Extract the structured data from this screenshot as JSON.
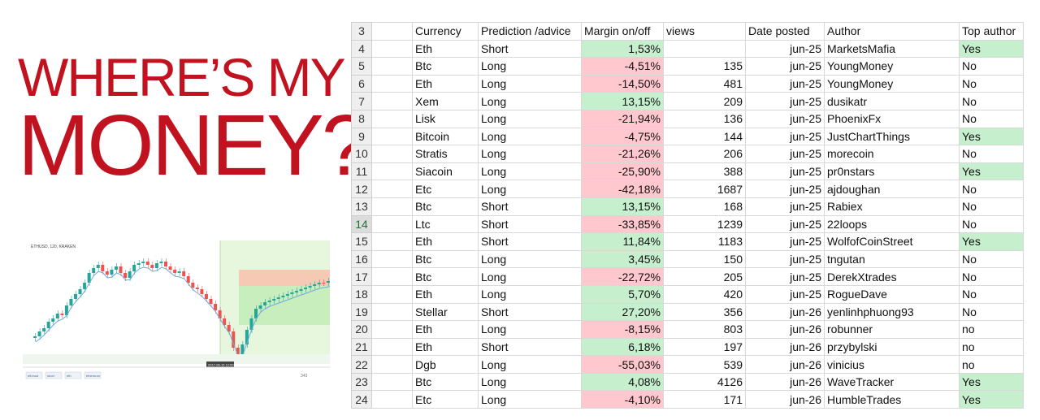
{
  "headline": {
    "line1": "WHERE’S MY",
    "line2": "MONEY?"
  },
  "chart": {
    "symbol_text": "ETHUSD, 120, KRAKEN",
    "time_marker": "2017-06-15 12:00:00",
    "footer_buttons": [
      "eth/usd",
      "short",
      "eth",
      "ethereum"
    ],
    "footer_views": "343"
  },
  "table": {
    "header_row_number": "3",
    "columns": [
      "Currency",
      "Prediction /advice",
      "Margin on/off",
      "views",
      "Date posted",
      "Author",
      "Top author"
    ],
    "rows": [
      {
        "n": "4",
        "currency": "Eth",
        "prediction": "Short",
        "margin": "1,53%",
        "margin_sign": "pos",
        "views": "",
        "date": "jun-25",
        "author": "Markets",
        "author_hidden": "Mafia",
        "top": "Yes"
      },
      {
        "n": "5",
        "currency": "Btc",
        "prediction": "Long",
        "margin": "-4,51%",
        "margin_sign": "neg",
        "views": "135",
        "date": "jun-25",
        "author": "YoungM",
        "author_hidden": "oney",
        "top": "No"
      },
      {
        "n": "6",
        "currency": "Eth",
        "prediction": "Long",
        "margin": "-14,50%",
        "margin_sign": "neg",
        "views": "481",
        "date": "jun-25",
        "author": "YoungM",
        "author_hidden": "oney",
        "top": "No"
      },
      {
        "n": "7",
        "currency": "Xem",
        "prediction": "Long",
        "margin": "13,15%",
        "margin_sign": "pos",
        "views": "209",
        "date": "jun-25",
        "author": "dusika",
        "author_hidden": "tr",
        "top": "No"
      },
      {
        "n": "8",
        "currency": "Lisk",
        "prediction": "Long",
        "margin": "-21,94%",
        "margin_sign": "neg",
        "views": "136",
        "date": "jun-25",
        "author": "Phoen",
        "author_hidden": "ixFx",
        "top": "No"
      },
      {
        "n": "9",
        "currency": "Bitcoin",
        "prediction": "Long",
        "margin": "-4,75%",
        "margin_sign": "neg",
        "views": "144",
        "date": "jun-25",
        "author": "JustChart",
        "author_hidden": "Things",
        "top": "Yes"
      },
      {
        "n": "10",
        "currency": "Stratis",
        "prediction": "Long",
        "margin": "-21,26%",
        "margin_sign": "neg",
        "views": "206",
        "date": "jun-25",
        "author": "more",
        "author_hidden": "coin",
        "top": "No"
      },
      {
        "n": "11",
        "currency": "Siacoin",
        "prediction": "Long",
        "margin": "-25,90%",
        "margin_sign": "neg",
        "views": "388",
        "date": "jun-25",
        "author": "pr0n",
        "author_hidden": "stars",
        "top": "Yes"
      },
      {
        "n": "12",
        "currency": "Etc",
        "prediction": "Long",
        "margin": "-42,18%",
        "margin_sign": "neg",
        "views": "1687",
        "date": "jun-25",
        "author": "ajdou",
        "author_hidden": "ghan",
        "top": "No"
      },
      {
        "n": "13",
        "currency": "Btc",
        "prediction": "Short",
        "margin": "13,15%",
        "margin_sign": "pos",
        "views": "168",
        "date": "jun-25",
        "author": "Rabie",
        "author_hidden": "x",
        "top": "No"
      },
      {
        "n": "14",
        "currency": "Ltc",
        "prediction": "Short",
        "margin": "-33,85%",
        "margin_sign": "neg",
        "views": "1239",
        "date": "jun-25",
        "author": "22",
        "author_hidden": "loops",
        "top": "No"
      },
      {
        "n": "15",
        "currency": "Eth",
        "prediction": "Short",
        "margin": "11,84%",
        "margin_sign": "pos",
        "views": "1183",
        "date": "jun-25",
        "author": "Wolf",
        "author_hidden": "ofCoinStreet",
        "top": "Yes"
      },
      {
        "n": "16",
        "currency": "Btc",
        "prediction": "Long",
        "margin": "3,45%",
        "margin_sign": "pos",
        "views": "150",
        "date": "jun-25",
        "author": "tnguta",
        "author_hidden": "n",
        "top": "No"
      },
      {
        "n": "17",
        "currency": "Btc",
        "prediction": "Long",
        "margin": "-22,72%",
        "margin_sign": "neg",
        "views": "205",
        "date": "jun-25",
        "author": "DerekX",
        "author_hidden": "trades",
        "top": "No"
      },
      {
        "n": "18",
        "currency": "Eth",
        "prediction": "Long",
        "margin": "5,70%",
        "margin_sign": "pos",
        "views": "420",
        "date": "jun-25",
        "author": "RogueDave",
        "author_hidden": "",
        "top": "No"
      },
      {
        "n": "19",
        "currency": "Stellar",
        "prediction": "Short",
        "margin": "27,20%",
        "margin_sign": "pos",
        "views": "356",
        "date": "jun-26",
        "author": "yenlinhph",
        "author_hidden": "uong93",
        "top": "No"
      },
      {
        "n": "20",
        "currency": "Eth",
        "prediction": "Long",
        "margin": "-8,15%",
        "margin_sign": "neg",
        "views": "803",
        "date": "jun-26",
        "author": "robu",
        "author_hidden": "nner",
        "top": "no"
      },
      {
        "n": "21",
        "currency": "Eth",
        "prediction": "Short",
        "margin": "6,18%",
        "margin_sign": "pos",
        "views": "197",
        "date": "jun-26",
        "author": "przyb",
        "author_hidden": "ylski",
        "top": "no"
      },
      {
        "n": "22",
        "currency": "Dgb",
        "prediction": "Long",
        "margin": "-55,03%",
        "margin_sign": "neg",
        "views": "539",
        "date": "jun-26",
        "author": "viniciu",
        "author_hidden": "s",
        "top": "no"
      },
      {
        "n": "23",
        "currency": "Btc",
        "prediction": "Long",
        "margin": "4,08%",
        "margin_sign": "pos",
        "views": "4126",
        "date": "jun-26",
        "author": "Wave",
        "author_hidden": "Tracker",
        "top": "Yes"
      },
      {
        "n": "24",
        "currency": "Etc",
        "prediction": "Long",
        "margin": "-4,10%",
        "margin_sign": "neg",
        "views": "171",
        "date": "jun-26",
        "author": "Humble",
        "author_hidden": "Trades",
        "top": "Yes"
      }
    ],
    "active_row": "14"
  },
  "colors": {
    "headline": "#c1121f",
    "positive_fill": "#c6efce",
    "negative_fill": "#ffc7ce"
  }
}
